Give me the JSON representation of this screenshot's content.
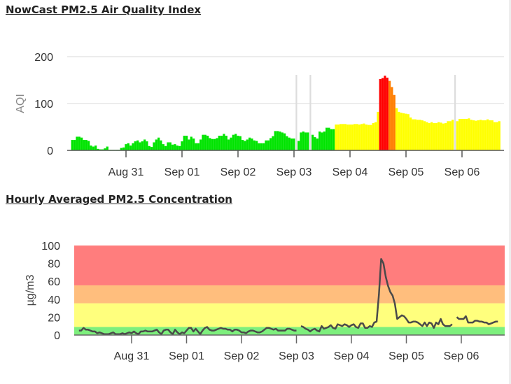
{
  "chart_data": [
    {
      "type": "bar",
      "title": "NowCast PM2.5 Air Quality Index",
      "ylabel": "AQI",
      "ylim": [
        0,
        200
      ],
      "yticks": [
        "0",
        "100",
        "200"
      ],
      "xticks": [
        "Aug 31",
        "Sep 01",
        "Sep 02",
        "Sep 03",
        "Sep 04",
        "Sep 05",
        "Sep 06"
      ],
      "x_start": "Aug 30 01:00",
      "interval": "hourly",
      "color_scale": [
        {
          "max": 50,
          "color": "#00e400"
        },
        {
          "max": 100,
          "color": "#ffff00"
        },
        {
          "max": 150,
          "color": "#ff7e00"
        },
        {
          "max": 200,
          "color": "#ff0000"
        }
      ],
      "missing_color": "#dddddd",
      "values": [
        22,
        22,
        29,
        29,
        27,
        22,
        22,
        20,
        10,
        8,
        10,
        3,
        2,
        2,
        4,
        8,
        1,
        0,
        0,
        1,
        1,
        5,
        6,
        13,
        15,
        10,
        15,
        19,
        21,
        17,
        19,
        23,
        19,
        9,
        7,
        17,
        23,
        27,
        21,
        13,
        9,
        17,
        17,
        12,
        13,
        10,
        9,
        19,
        31,
        31,
        23,
        29,
        25,
        15,
        15,
        23,
        33,
        33,
        31,
        26,
        24,
        24,
        26,
        31,
        31,
        35,
        31,
        23,
        27,
        33,
        35,
        31,
        30,
        22,
        20,
        23,
        27,
        25,
        21,
        20,
        15,
        15,
        15,
        21,
        21,
        26,
        30,
        41,
        41,
        40,
        38,
        36,
        30,
        27,
        25,
        25,
        null,
        20,
        38,
        40,
        38,
        38,
        null,
        33,
        28,
        25,
        40,
        38,
        40,
        48,
        48,
        45,
        45,
        55,
        55,
        56,
        56,
        56,
        55,
        55,
        55,
        56,
        56,
        55,
        56,
        57,
        55,
        54,
        54,
        58,
        60,
        82,
        152,
        154,
        159,
        155,
        148,
        135,
        118,
        90,
        82,
        80,
        79,
        78,
        77,
        70,
        66,
        66,
        65,
        65,
        64,
        62,
        60,
        58,
        60,
        58,
        58,
        60,
        59,
        57,
        58,
        62,
        62,
        65,
        null,
        62,
        67,
        67,
        67,
        67,
        68,
        65,
        64,
        63,
        64,
        65,
        64,
        64,
        66,
        64,
        64,
        60,
        60,
        62
      ]
    },
    {
      "type": "line",
      "title": "Hourly Averaged PM2.5 Concentration",
      "ylabel": "µg/m3",
      "ylim": [
        0,
        100
      ],
      "yticks": [
        "0",
        "20",
        "40",
        "60",
        "80",
        "100"
      ],
      "xticks": [
        "Aug 31",
        "Sep 01",
        "Sep 02",
        "Sep 03",
        "Sep 04",
        "Sep 05",
        "Sep 06"
      ],
      "x_start": "Aug 30 01:00",
      "interval": "hourly",
      "bands": [
        {
          "from": 0,
          "to": 9,
          "color": "#7def7d"
        },
        {
          "from": 9,
          "to": 35.5,
          "color": "#ffff7d"
        },
        {
          "from": 35.5,
          "to": 55.5,
          "color": "#ffbe7d"
        },
        {
          "from": 55.5,
          "to": 100,
          "color": "#ff7d7d"
        }
      ],
      "line_color": "#4a4a4a",
      "values": [
        5,
        5,
        8,
        6,
        6,
        5,
        4,
        4,
        2,
        3,
        2,
        1,
        1,
        1,
        2,
        3,
        1,
        1,
        1,
        2,
        1,
        2,
        3,
        2,
        4,
        2,
        1,
        4,
        4,
        5,
        4,
        4,
        4,
        5,
        6,
        3,
        1,
        5,
        6,
        6,
        3,
        1,
        6,
        3,
        1,
        3,
        2,
        5,
        8,
        8,
        4,
        7,
        4,
        1,
        5,
        8,
        9,
        6,
        5,
        5,
        6,
        7,
        8,
        7,
        7,
        6,
        6,
        4,
        6,
        6,
        5,
        3,
        3,
        2,
        4,
        5,
        5,
        4,
        3,
        3,
        4,
        6,
        8,
        8,
        7,
        6,
        7,
        5,
        5,
        5,
        5,
        7,
        7,
        6,
        5,
        5,
        null,
        10,
        9,
        7,
        6,
        4,
        6,
        7,
        5,
        4,
        10,
        7,
        8,
        9,
        11,
        8,
        7,
        12,
        11,
        10,
        12,
        11,
        9,
        11,
        12,
        9,
        8,
        13,
        13,
        8,
        8,
        10,
        9,
        14,
        15,
        45,
        85,
        80,
        65,
        55,
        48,
        44,
        35,
        18,
        20,
        22,
        21,
        18,
        14,
        14,
        15,
        15,
        14,
        12,
        10,
        14,
        10,
        14,
        13,
        8,
        14,
        12,
        18,
        12,
        10,
        10,
        10,
        12,
        null,
        20,
        18,
        18,
        18,
        21,
        14,
        14,
        14,
        16,
        16,
        15,
        15,
        14,
        14,
        12,
        13,
        14,
        15,
        15
      ]
    }
  ]
}
